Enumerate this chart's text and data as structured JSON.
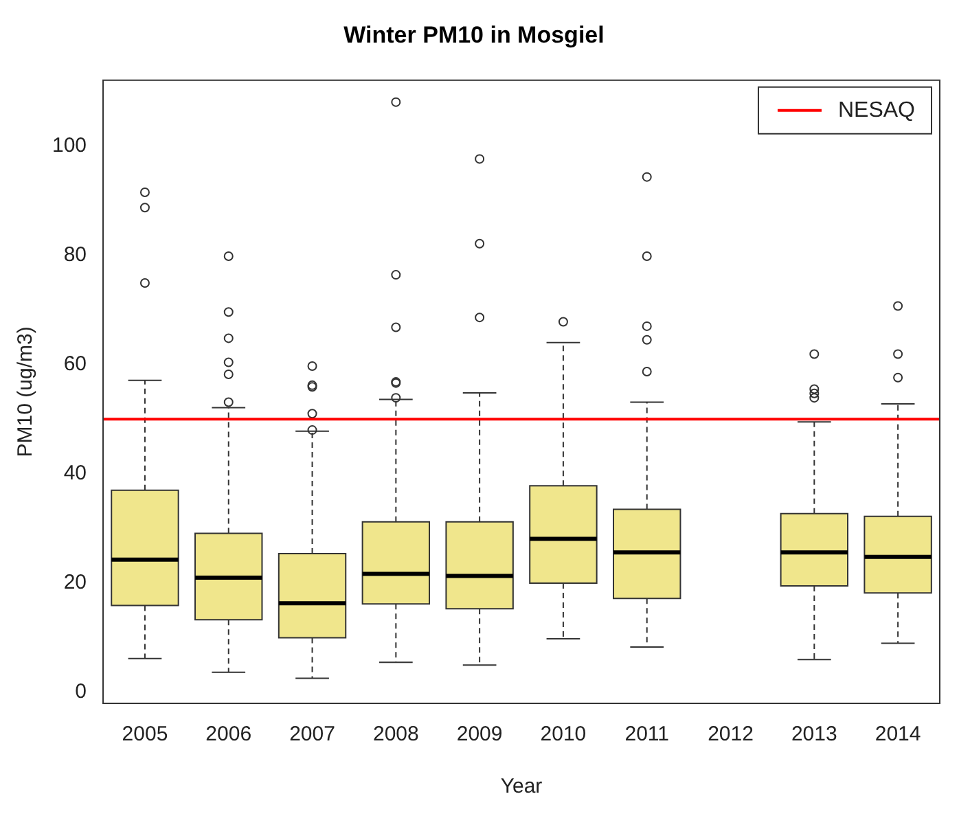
{
  "chart_data": {
    "type": "box",
    "title": "Winter PM10 in Mosgiel",
    "xlabel": "Year",
    "ylabel": "PM10 (ug/m3)",
    "categories": [
      "2005",
      "2006",
      "2007",
      "2008",
      "2009",
      "2010",
      "2011",
      "2012",
      "2013",
      "2014"
    ],
    "color": "#f0e68c",
    "boxes": [
      {
        "low": 6.2,
        "q1": 15.9,
        "median": 24.3,
        "q3": 37,
        "high": 57.1,
        "outliers": [
          91.5,
          88.7,
          74.9
        ]
      },
      {
        "low": 3.7,
        "q1": 13.3,
        "median": 21,
        "q3": 29.1,
        "high": 52.1,
        "outliers": [
          79.8,
          69.6,
          64.8,
          60.4,
          58.2,
          53.1
        ]
      },
      {
        "low": 2.6,
        "q1": 10,
        "median": 16.3,
        "q3": 25.4,
        "high": 47.8,
        "outliers": [
          59.7,
          56.2,
          55.9,
          51,
          48
        ]
      },
      {
        "low": 5.5,
        "q1": 16.2,
        "median": 21.7,
        "q3": 31.2,
        "high": 53.6,
        "outliers": [
          108,
          76.4,
          66.8,
          56.8,
          56.6,
          53.9
        ]
      },
      {
        "low": 5,
        "q1": 15.3,
        "median": 21.3,
        "q3": 31.2,
        "high": 54.8,
        "outliers": [
          97.6,
          82.1,
          68.6
        ]
      },
      {
        "low": 9.8,
        "q1": 20,
        "median": 28.1,
        "q3": 37.8,
        "high": 64,
        "outliers": [
          67.8
        ]
      },
      {
        "low": 8.3,
        "q1": 17.2,
        "median": 25.6,
        "q3": 33.5,
        "high": 53.1,
        "outliers": [
          94.3,
          79.8,
          67,
          64.5,
          58.7
        ]
      },
      null,
      {
        "low": 6,
        "q1": 19.5,
        "median": 25.6,
        "q3": 32.7,
        "high": 49.5,
        "outliers": [
          61.9,
          55.5,
          54.7,
          53.9
        ]
      },
      {
        "low": 9,
        "q1": 18.2,
        "median": 24.8,
        "q3": 32.2,
        "high": 52.8,
        "outliers": [
          70.7,
          61.9,
          57.6
        ]
      }
    ],
    "ylim": [
      -2,
      112
    ],
    "yticks": [
      0,
      20,
      40,
      60,
      80,
      100
    ],
    "grid": false,
    "legend": "top right",
    "marker": "circle",
    "ref_lines": [
      {
        "axis": "y",
        "value": 50,
        "label": "NESAQ",
        "color": "#ff0000"
      }
    ]
  }
}
